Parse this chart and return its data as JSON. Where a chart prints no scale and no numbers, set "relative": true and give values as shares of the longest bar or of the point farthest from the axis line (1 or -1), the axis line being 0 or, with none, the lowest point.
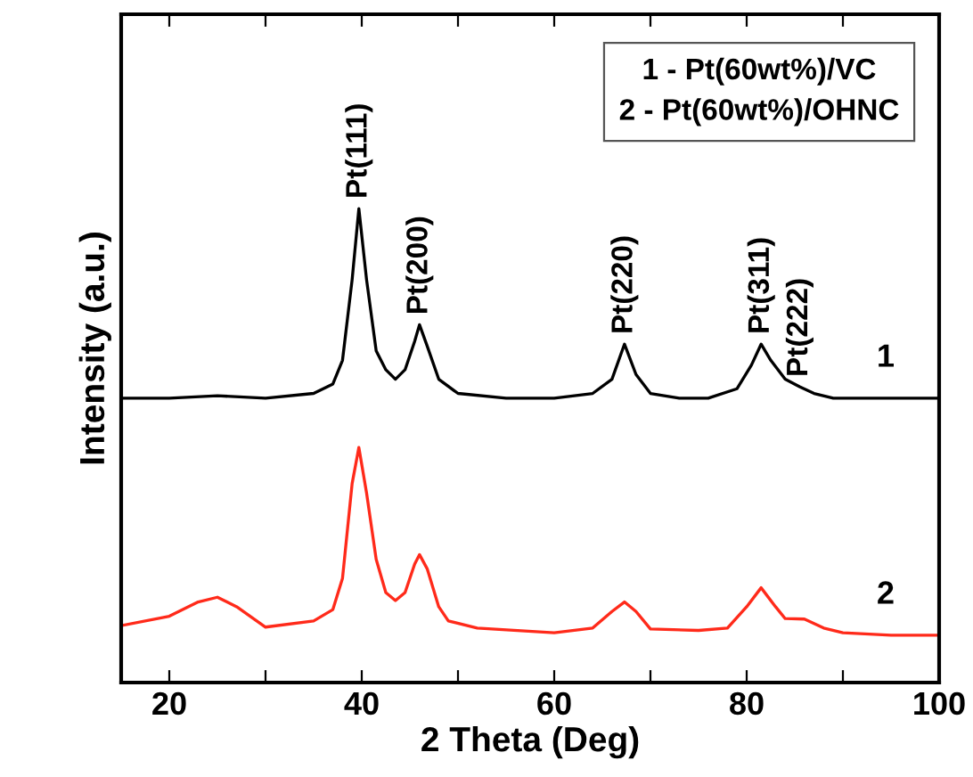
{
  "chart_data": {
    "type": "line",
    "relative": true,
    "xlabel": "2 Theta (Deg)",
    "ylabel": "Intensity (a.u.)",
    "xlim": [
      15,
      100
    ],
    "xticks": [
      20,
      {
        "value": 30,
        "label": null
      },
      40,
      {
        "value": 50,
        "label": null
      },
      60,
      {
        "value": 70,
        "label": null
      },
      80,
      {
        "value": 90,
        "label": null
      },
      100
    ],
    "tick_labels": "x",
    "grid": false,
    "legend": false,
    "marker": "none",
    "line_style": "solid",
    "series": [
      {
        "name": "1",
        "color": "#000000",
        "x": [
          15,
          20,
          25,
          30,
          35,
          37,
          38,
          39,
          39.7,
          40.5,
          41.5,
          42.5,
          43.5,
          44.5,
          45.5,
          46,
          46.8,
          48,
          50,
          55,
          60,
          64,
          66,
          67.3,
          68.5,
          70,
          73,
          76,
          79,
          80.5,
          81.5,
          82.5,
          84,
          85.5,
          87,
          89,
          92,
          96,
          100
        ],
        "values": [
          0.6,
          0.6,
          0.605,
          0.6,
          0.61,
          0.63,
          0.68,
          0.85,
          1.0,
          0.85,
          0.7,
          0.66,
          0.64,
          0.66,
          0.72,
          0.755,
          0.71,
          0.64,
          0.61,
          0.6,
          0.6,
          0.61,
          0.64,
          0.714,
          0.65,
          0.61,
          0.6,
          0.6,
          0.62,
          0.67,
          0.714,
          0.68,
          0.64,
          0.624,
          0.61,
          0.6,
          0.6,
          0.6,
          0.6
        ]
      },
      {
        "name": "2",
        "color": "#ff2a1a",
        "x": [
          15,
          20,
          23,
          25,
          27,
          30,
          35,
          37,
          38,
          39,
          39.7,
          40.5,
          41.5,
          42.5,
          43.5,
          44.5,
          45.5,
          46,
          46.8,
          48,
          49,
          52,
          60,
          64,
          66,
          67.3,
          68.5,
          70,
          75,
          78,
          80,
          81.5,
          83,
          84,
          86,
          88,
          90,
          95,
          100
        ],
        "values": [
          0.12,
          0.14,
          0.17,
          0.18,
          0.16,
          0.117,
          0.13,
          0.154,
          0.22,
          0.42,
          0.496,
          0.4,
          0.26,
          0.19,
          0.173,
          0.19,
          0.25,
          0.27,
          0.24,
          0.16,
          0.13,
          0.115,
          0.105,
          0.115,
          0.15,
          0.17,
          0.15,
          0.113,
          0.11,
          0.115,
          0.16,
          0.2,
          0.16,
          0.135,
          0.134,
          0.115,
          0.105,
          0.1,
          0.1
        ]
      }
    ],
    "annotations": [
      {
        "text": "Pt(111)",
        "x": 39.7,
        "y": 1.0
      },
      {
        "text": "Pt(200)",
        "x": 46,
        "y": 0.755
      },
      {
        "text": "Pt(220)",
        "x": 67.3,
        "y": 0.714
      },
      {
        "text": "Pt(311)",
        "x": 81.5,
        "y": 0.714
      },
      {
        "text": "Pt(222)",
        "x": 85.5,
        "y": 0.624
      },
      "1 - Pt(60wt%)/VC",
      "2 - Pt(60wt%)/OHNC"
    ]
  }
}
